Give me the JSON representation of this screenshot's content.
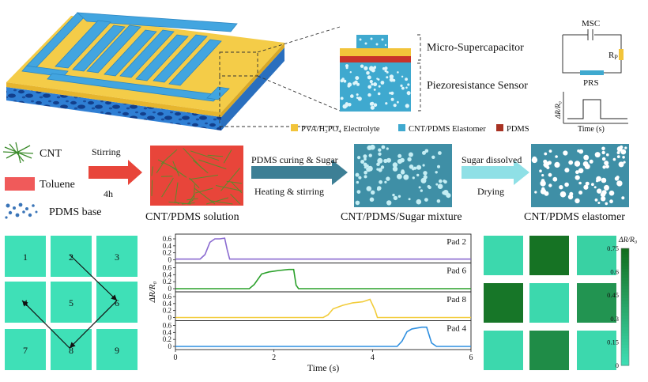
{
  "panel_a": {
    "layer_labels": {
      "micro_supercapacitor": "Micro-Supercapacitor",
      "piezoresistance_sensor": "Piezoresistance Sensor"
    },
    "legend": [
      {
        "label": "PVA/H₃PO₄ Electrolyte",
        "color": "#f2c43a"
      },
      {
        "label": "CNT/PDMS Elastomer",
        "color": "#3fa9cf"
      },
      {
        "label": "PDMS",
        "color": "#a83223"
      }
    ],
    "circuit": {
      "msc": "MSC",
      "rp": "R",
      "rp_sub": "P",
      "prs": "PRS"
    },
    "pulse_plot": {
      "ylabel": "ΔR/R₀",
      "xlabel": "Time (s)"
    }
  },
  "panel_b": {
    "ingredients": [
      {
        "label": "CNT",
        "icon": "cnt-strands"
      },
      {
        "label": "Toluene",
        "icon": "toluene-block"
      },
      {
        "label": "PDMS base",
        "icon": "pdms-dots"
      }
    ],
    "steps": [
      {
        "top": "Stirring",
        "bottom": "4h"
      },
      {
        "top": "PDMS curing & Sugar",
        "bottom": "Heating & stirring"
      },
      {
        "top": "Sugar dissolved",
        "bottom": "Drying"
      }
    ],
    "products": [
      "CNT/PDMS solution",
      "CNT/PDMS/Sugar mixture",
      "CNT/PDMS elastomer"
    ],
    "colors": {
      "solution": "#e8453a",
      "fibers": "#5b8a2c",
      "composite": "#3f8fa6",
      "pores": "#c5eef4",
      "arrow1": "#e8453a",
      "arrow2": "#3d7f95",
      "arrow3": "#8fe0e6"
    }
  },
  "panel_c": {
    "pads": [
      "1",
      "2",
      "3",
      "4",
      "5",
      "6",
      "7",
      "8",
      "9"
    ],
    "pad_color": "#3fe0b7",
    "path": [
      "2",
      "6",
      "8",
      "4"
    ]
  },
  "chart_data": {
    "type": "line",
    "xlabel": "Time (s)",
    "ylabel": "ΔR/R₀",
    "xlim": [
      0,
      6
    ],
    "ylim": [
      0,
      0.6
    ],
    "xticks": [
      "0",
      "2",
      "4",
      "6"
    ],
    "yticks": [
      "0",
      "0.2",
      "0.4",
      "0.6"
    ],
    "series": [
      {
        "name": "Pad 2",
        "color": "#8a6ad0",
        "x": [
          0,
          0.5,
          0.6,
          0.7,
          0.8,
          0.9,
          1.0,
          1.05,
          1.1,
          6
        ],
        "y": [
          0.02,
          0.02,
          0.15,
          0.5,
          0.6,
          0.6,
          0.62,
          0.3,
          0.02,
          0.02
        ]
      },
      {
        "name": "Pad 6",
        "color": "#2aa02a",
        "x": [
          0,
          1.5,
          1.6,
          1.75,
          1.9,
          2.1,
          2.3,
          2.4,
          2.45,
          2.5,
          6
        ],
        "y": [
          0.0,
          0.0,
          0.12,
          0.42,
          0.48,
          0.52,
          0.55,
          0.55,
          0.1,
          0.0,
          0.0
        ]
      },
      {
        "name": "Pad 8",
        "color": "#f2cc3a",
        "x": [
          0,
          3.0,
          3.1,
          3.2,
          3.4,
          3.6,
          3.8,
          3.95,
          4.05,
          4.1,
          6
        ],
        "y": [
          0.0,
          0.0,
          0.08,
          0.25,
          0.35,
          0.42,
          0.45,
          0.52,
          0.22,
          0.0,
          0.0
        ]
      },
      {
        "name": "Pad 4",
        "color": "#2e8fe0",
        "x": [
          0,
          4.5,
          4.6,
          4.7,
          4.8,
          5.0,
          5.1,
          5.2,
          5.3,
          6
        ],
        "y": [
          0.0,
          0.0,
          0.15,
          0.42,
          0.5,
          0.55,
          0.55,
          0.1,
          0.0,
          0.0
        ]
      }
    ]
  },
  "panel_d": {
    "colorbar": {
      "label": "ΔR/R₀",
      "min": 0,
      "max": 0.75,
      "ticks": [
        "0",
        "0.15",
        "0.3",
        "0.45",
        "0.6",
        "0.75"
      ]
    },
    "heatmap": [
      [
        0.05,
        0.72,
        0.1
      ],
      [
        0.7,
        0.05,
        0.5
      ],
      [
        0.05,
        0.55,
        0.05
      ]
    ]
  }
}
